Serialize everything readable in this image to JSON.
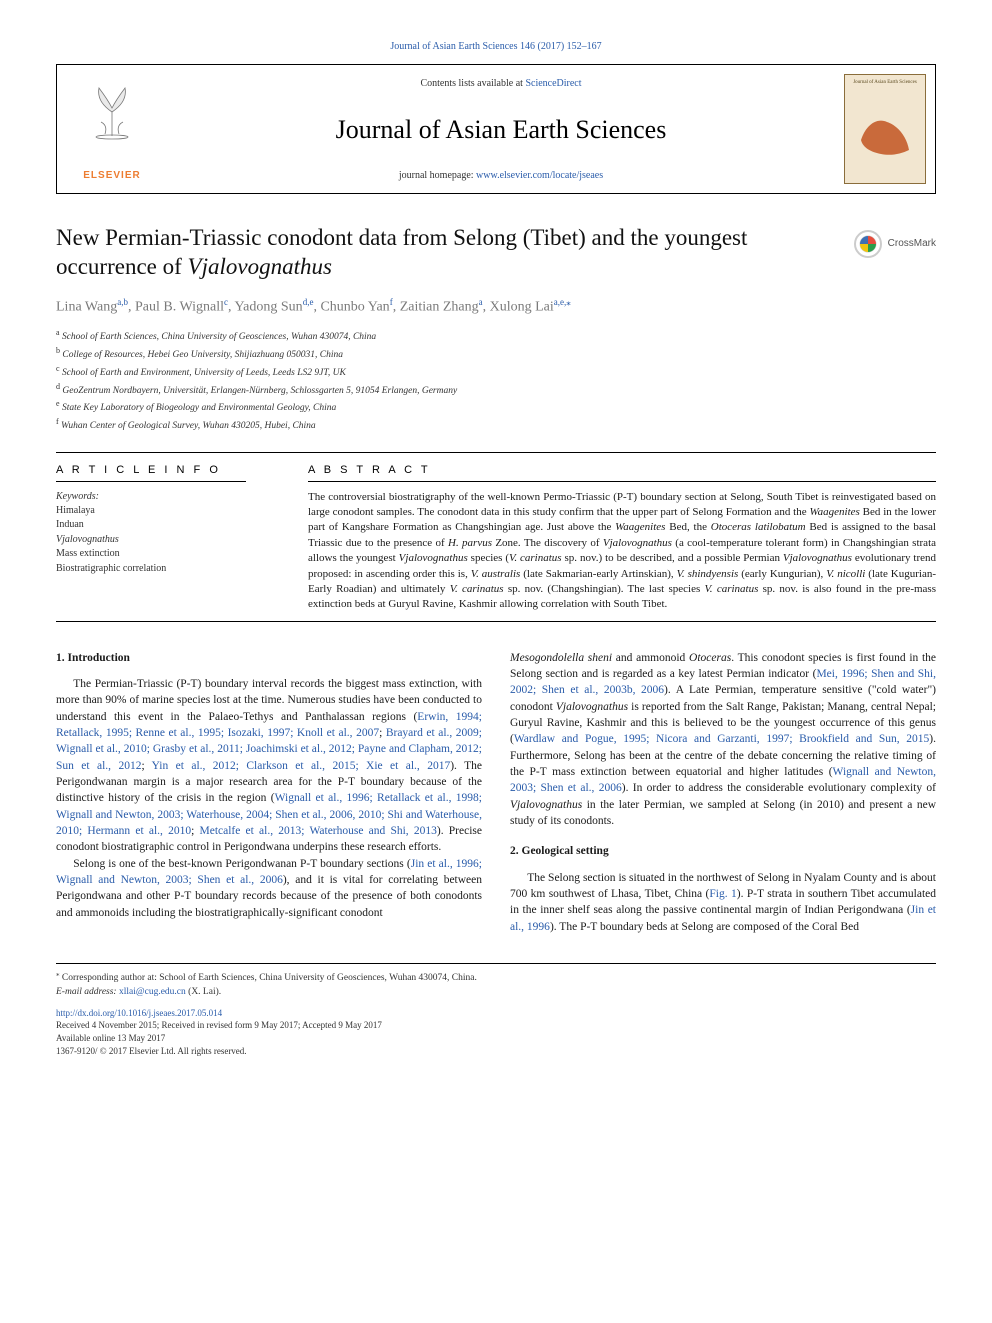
{
  "journal_header_link": "Journal of Asian Earth Sciences 146 (2017) 152–167",
  "header": {
    "contents_prefix": "Contents lists available at ",
    "contents_link": "ScienceDirect",
    "journal_name": "Journal of Asian Earth Sciences",
    "homepage_prefix": "journal homepage: ",
    "homepage_link": "www.elsevier.com/locate/jseaes",
    "publisher_mark": "ELSEVIER",
    "cover_title": "Journal of Asian Earth Sciences"
  },
  "crossmark_label": "CrossMark",
  "title_plain_pre": "New Permian-Triassic conodont data from Selong (Tibet) and the youngest occurrence of ",
  "title_taxon": "Vjalovognathus",
  "authors_line": {
    "a1": "Lina Wang",
    "s1": "a,b",
    "a2": "Paul B. Wignall",
    "s2": "c",
    "a3": "Yadong Sun",
    "s3": "d,e",
    "a4": "Chunbo Yan",
    "s4": "f",
    "a5": "Zaitian Zhang",
    "s5": "a",
    "a6": "Xulong Lai",
    "s6": "a,e,⁎"
  },
  "affiliations": {
    "a": "School of Earth Sciences, China University of Geosciences, Wuhan 430074, China",
    "b": "College of Resources, Hebei Geo University, Shijiazhuang 050031, China",
    "c": "School of Earth and Environment, University of Leeds, Leeds LS2 9JT, UK",
    "d": "GeoZentrum Nordbayern, Universität, Erlangen-Nürnberg, Schlossgarten 5, 91054 Erlangen, Germany",
    "e": "State Key Laboratory of Biogeology and Environmental Geology, China",
    "f": "Wuhan Center of Geological Survey, Wuhan 430205, Hubei, China"
  },
  "article_info_head": "A R T I C L E  I N F O",
  "abstract_head": "A B S T R A C T",
  "keywords_label": "Keywords:",
  "keywords": [
    "Himalaya",
    "Induan",
    "Vjalovognathus",
    "Mass extinction",
    "Biostratigraphic correlation"
  ],
  "keywords_italic_idx": 2,
  "abstract_text_parts": [
    {
      "t": "The controversial biostratigraphy of the well-known Permo-Triassic (P-T) boundary section at Selong, South Tibet is reinvestigated based on large conodont samples. The conodont data in this study confirm that the upper part of Selong Formation and the "
    },
    {
      "t": "Waagenites",
      "i": true
    },
    {
      "t": " Bed in the lower part of Kangshare Formation as Changshingian age. Just above the "
    },
    {
      "t": "Waagenites",
      "i": true
    },
    {
      "t": " Bed, the "
    },
    {
      "t": "Otoceras latilobatum",
      "i": true
    },
    {
      "t": " Bed is assigned to the basal Triassic due to the presence of "
    },
    {
      "t": "H. parvus",
      "i": true
    },
    {
      "t": " Zone. The discovery of "
    },
    {
      "t": "Vjalovognathus",
      "i": true
    },
    {
      "t": " (a cool-temperature tolerant form) in Changshingian strata allows the youngest "
    },
    {
      "t": "Vjalovognathus",
      "i": true
    },
    {
      "t": " species ("
    },
    {
      "t": "V. carinatus",
      "i": true
    },
    {
      "t": " sp. nov.) to be described, and a possible Permian "
    },
    {
      "t": "Vjalovognathus",
      "i": true
    },
    {
      "t": " evolutionary trend proposed: in ascending order this is, "
    },
    {
      "t": "V. australis",
      "i": true
    },
    {
      "t": " (late Sakmarian-early Artinskian), "
    },
    {
      "t": "V. shindyensis",
      "i": true
    },
    {
      "t": " (early Kungurian), "
    },
    {
      "t": "V. nicolli",
      "i": true
    },
    {
      "t": " (late Kugurian-Early Roadian) and ultimately "
    },
    {
      "t": "V. carinatus",
      "i": true
    },
    {
      "t": " sp. nov. (Changshingian). The last species "
    },
    {
      "t": "V. carinatus",
      "i": true
    },
    {
      "t": " sp. nov. is also found in the pre-mass extinction beds at Guryul Ravine, Kashmir allowing correlation with South Tibet."
    }
  ],
  "body": {
    "sec1_head": "1. Introduction",
    "sec1_p1_parts": [
      {
        "t": "The Permian-Triassic (P-T) boundary interval records the biggest mass extinction, with more than 90% of marine species lost at the time. Numerous studies have been conducted to understand this event in the Palaeo-Tethys and Panthalassan regions ("
      },
      {
        "t": "Erwin, 1994; Retallack, 1995; Renne et al., 1995; Isozaki, 1997; Knoll et al., 2007",
        "r": true
      },
      {
        "t": "; "
      },
      {
        "t": "Brayard et al., 2009; Wignall et al., 2010; Grasby et al., 2011; Joachimski et al., 2012; Payne and Clapham, 2012; Sun et al., 2012",
        "r": true
      },
      {
        "t": "; "
      },
      {
        "t": "Yin et al., 2012; Clarkson et al., 2015; Xie et al., 2017",
        "r": true
      },
      {
        "t": "). The Perigondwanan margin is a major research area for the P-T boundary because of the distinctive history of the crisis in the region ("
      },
      {
        "t": "Wignall et al., 1996; Retallack et al., 1998; Wignall and Newton, 2003; Waterhouse, 2004; Shen et al., 2006, 2010; Shi and Waterhouse, 2010; Hermann et al., 2010",
        "r": true
      },
      {
        "t": "; "
      },
      {
        "t": "Metcalfe et al., 2013; Waterhouse and Shi, 2013",
        "r": true
      },
      {
        "t": "). Precise conodont biostratigraphic control in Perigondwana underpins these research efforts."
      }
    ],
    "sec1_p2_parts": [
      {
        "t": "Selong is one of the best-known Perigondwanan P-T boundary sections ("
      },
      {
        "t": "Jin et al., 1996; Wignall and Newton, 2003; Shen et al., 2006",
        "r": true
      },
      {
        "t": "), and it is vital for correlating between Perigondwana and other P-T boundary records because of the presence of both conodonts and ammonoids including the biostratigraphically-significant conodont "
      }
    ],
    "sec1_p2b_parts": [
      {
        "t": "Mesogondolella sheni",
        "i": true
      },
      {
        "t": " and ammonoid "
      },
      {
        "t": "Otoceras",
        "i": true
      },
      {
        "t": ". This conodont species is first found in the Selong section and is regarded as a key latest Permian indicator ("
      },
      {
        "t": "Mei, 1996; Shen and Shi, 2002; Shen et al., 2003b, 2006",
        "r": true
      },
      {
        "t": "). A Late Permian, temperature sensitive (\"cold water\") conodont "
      },
      {
        "t": "Vjalovognathus",
        "i": true
      },
      {
        "t": " is reported from the Salt Range, Pakistan; Manang, central Nepal; Guryul Ravine, Kashmir and this is believed to be the youngest occurrence of this genus ("
      },
      {
        "t": "Wardlaw and Pogue, 1995; Nicora and Garzanti, 1997; Brookfield and Sun, 2015",
        "r": true
      },
      {
        "t": "). Furthermore, Selong has been at the centre of the debate concerning the relative timing of the P-T mass extinction between equatorial and higher latitudes ("
      },
      {
        "t": "Wignall and Newton, 2003; Shen et al., 2006",
        "r": true
      },
      {
        "t": "). In order to address the considerable evolutionary complexity of "
      },
      {
        "t": "Vjalovognathus",
        "i": true
      },
      {
        "t": " in the later Permian, we sampled at Selong (in 2010) and present a new study of its conodonts."
      }
    ],
    "sec2_head": "2. Geological setting",
    "sec2_p1_parts": [
      {
        "t": "The Selong section is situated in the northwest of Selong in Nyalam County and is about 700 km southwest of Lhasa, Tibet, China ("
      },
      {
        "t": "Fig. 1",
        "r": true
      },
      {
        "t": "). P-T strata in southern Tibet accumulated in the inner shelf seas along the passive continental margin of Indian Perigondwana ("
      },
      {
        "t": "Jin et al., 1996",
        "r": true
      },
      {
        "t": "). The P-T boundary beds at Selong are composed of the Coral Bed"
      }
    ]
  },
  "footnotes": {
    "corresponding": "Corresponding author at: School of Earth Sciences, China University of Geosciences, Wuhan 430074, China.",
    "email_label": "E-mail address:",
    "email": "xllai@cug.edu.cn",
    "email_after": " (X. Lai)."
  },
  "footer": {
    "doi": "http://dx.doi.org/10.1016/j.jseaes.2017.05.014",
    "received": "Received 4 November 2015; Received in revised form 9 May 2017; Accepted 9 May 2017",
    "available": "Available online 13 May 2017",
    "issn": "1367-9120/ © 2017 Elsevier Ltd. All rights reserved."
  },
  "colors": {
    "link": "#2a5caa",
    "elsevier": "#ed7d31",
    "author_gray": "#7a7a7a",
    "text": "#1a1a1a"
  }
}
